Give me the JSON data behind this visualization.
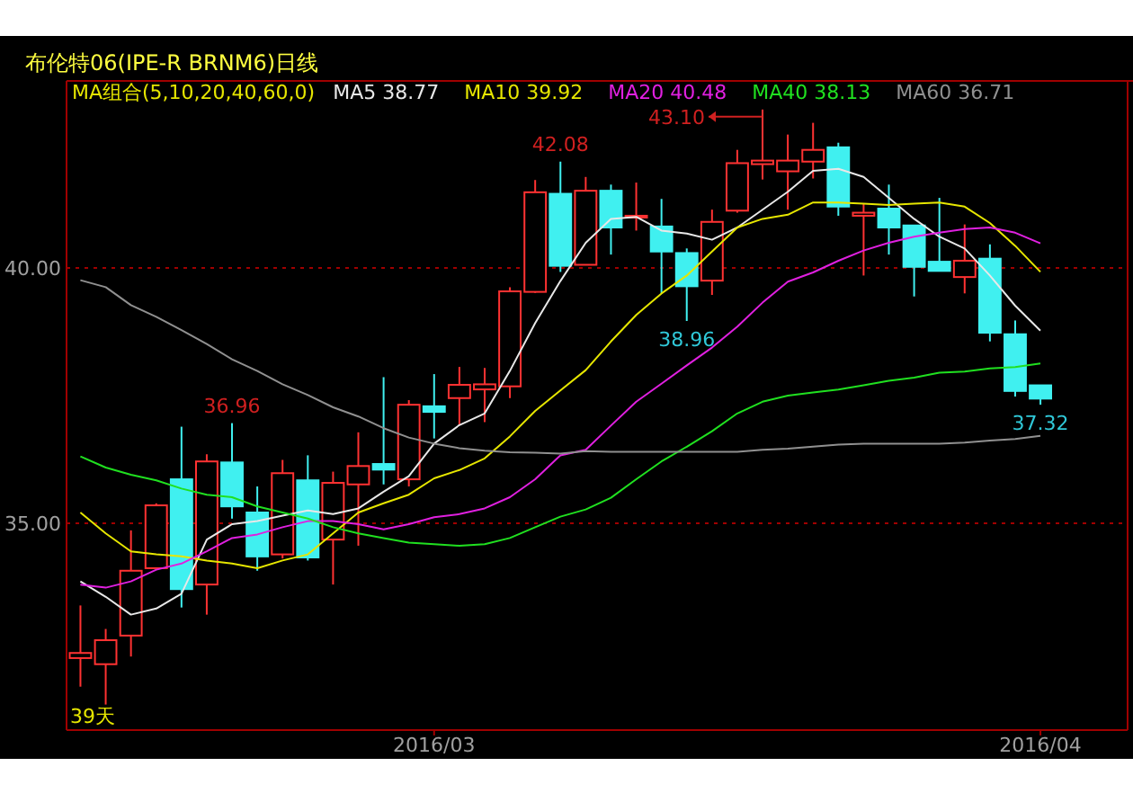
{
  "chart_data": {
    "type": "candlestick",
    "title": "布伦特06(IPE-R BRNM6)日线",
    "legend_title": "MA组合(5,10,20,40,60,0)",
    "legend": "top",
    "grid": "y",
    "categories": [
      null,
      null,
      null,
      null,
      null,
      null,
      null,
      null,
      null,
      null,
      null,
      null,
      null,
      null,
      "2016/03",
      null,
      null,
      null,
      null,
      null,
      null,
      null,
      null,
      null,
      null,
      null,
      null,
      null,
      null,
      null,
      null,
      null,
      null,
      null,
      null,
      null,
      null,
      null,
      "2016/04"
    ],
    "ylim": [
      30.95,
      43.66
    ],
    "yticks": [
      {
        "value": 35,
        "label": "35.00"
      },
      {
        "value": 40,
        "label": "40.00"
      }
    ],
    "ohlc": [
      [
        32.36,
        33.39,
        31.8,
        32.46
      ],
      [
        32.24,
        32.93,
        31.45,
        32.71
      ],
      [
        32.8,
        34.86,
        32.39,
        34.07
      ],
      [
        34.12,
        35.39,
        34.12,
        35.35
      ],
      [
        35.86,
        36.89,
        33.35,
        33.71
      ],
      [
        33.8,
        36.35,
        33.21,
        36.21
      ],
      [
        36.19,
        36.96,
        35.09,
        35.33
      ],
      [
        35.21,
        35.72,
        34.07,
        34.35
      ],
      [
        34.39,
        36.24,
        34.31,
        35.98
      ],
      [
        35.84,
        36.33,
        34.27,
        34.33
      ],
      [
        34.68,
        36.01,
        33.8,
        35.79
      ],
      [
        35.76,
        36.78,
        34.56,
        36.12
      ],
      [
        36.16,
        37.86,
        35.76,
        36.05
      ],
      [
        35.86,
        37.41,
        35.72,
        37.32
      ],
      [
        37.29,
        37.92,
        36.66,
        37.18
      ],
      [
        37.45,
        38.06,
        36.92,
        37.71
      ],
      [
        37.62,
        38.04,
        36.98,
        37.72
      ],
      [
        37.68,
        39.62,
        37.45,
        39.54
      ],
      [
        39.53,
        41.72,
        39.51,
        41.48
      ],
      [
        41.45,
        42.08,
        39.92,
        40.04
      ],
      [
        40.06,
        41.78,
        40.06,
        41.51
      ],
      [
        41.51,
        41.63,
        40.26,
        40.79
      ],
      [
        41.0,
        41.67,
        40.73,
        41.02
      ],
      [
        40.81,
        41.35,
        39.5,
        40.32
      ],
      [
        40.29,
        40.38,
        38.96,
        39.64
      ],
      [
        39.75,
        41.14,
        39.47,
        40.9
      ],
      [
        41.12,
        42.31,
        41.08,
        42.05
      ],
      [
        42.03,
        43.1,
        41.73,
        42.1
      ],
      [
        41.89,
        42.61,
        41.14,
        42.1
      ],
      [
        42.08,
        42.84,
        41.75,
        42.31
      ],
      [
        42.36,
        42.45,
        41.02,
        41.2
      ],
      [
        41.02,
        41.26,
        39.85,
        41.08
      ],
      [
        41.16,
        41.63,
        40.26,
        40.79
      ],
      [
        40.83,
        40.83,
        39.44,
        40.02
      ],
      [
        40.12,
        41.37,
        39.94,
        39.94
      ],
      [
        39.82,
        40.85,
        39.5,
        40.14
      ],
      [
        40.18,
        40.46,
        38.56,
        38.73
      ],
      [
        38.7,
        38.97,
        37.48,
        37.59
      ],
      [
        37.7,
        37.7,
        37.32,
        37.44
      ]
    ],
    "series": [
      {
        "name": "MA5 38.77",
        "type": "line",
        "color": "#e8e8e8",
        "values": [
          33.86,
          33.56,
          33.21,
          33.33,
          33.62,
          34.68,
          34.98,
          35.04,
          35.15,
          35.25,
          35.18,
          35.29,
          35.62,
          35.92,
          36.56,
          36.92,
          37.15,
          37.98,
          38.92,
          39.74,
          40.49,
          40.96,
          41.0,
          40.73,
          40.67,
          40.55,
          40.79,
          41.14,
          41.49,
          41.9,
          41.94,
          41.78,
          41.37,
          40.96,
          40.61,
          40.38,
          39.85,
          39.26,
          38.77
        ]
      },
      {
        "name": "MA10 39.92",
        "type": "line",
        "color": "#e6e600",
        "values": [
          35.21,
          34.8,
          34.45,
          34.39,
          34.35,
          34.27,
          34.21,
          34.12,
          34.27,
          34.39,
          34.8,
          35.21,
          35.39,
          35.56,
          35.88,
          36.04,
          36.27,
          36.7,
          37.2,
          37.6,
          38.0,
          38.56,
          39.08,
          39.5,
          39.85,
          40.32,
          40.79,
          40.96,
          41.04,
          41.28,
          41.28,
          41.26,
          41.23,
          41.26,
          41.28,
          41.2,
          40.88,
          40.43,
          39.92
        ]
      },
      {
        "name": "MA20 40.48",
        "type": "line",
        "color": "#e020e0",
        "values": [
          33.8,
          33.74,
          33.86,
          34.09,
          34.21,
          34.45,
          34.71,
          34.78,
          34.92,
          35.04,
          35.04,
          34.98,
          34.88,
          34.98,
          35.12,
          35.18,
          35.29,
          35.51,
          35.86,
          36.33,
          36.44,
          36.91,
          37.38,
          37.73,
          38.09,
          38.44,
          38.85,
          39.32,
          39.73,
          39.91,
          40.14,
          40.34,
          40.49,
          40.61,
          40.69,
          40.76,
          40.79,
          40.69,
          40.48
        ]
      },
      {
        "name": "MA40 38.13",
        "type": "line",
        "color": "#20e020",
        "values": [
          36.31,
          36.09,
          35.95,
          35.84,
          35.68,
          35.56,
          35.51,
          35.33,
          35.21,
          35.09,
          34.92,
          34.8,
          34.71,
          34.62,
          34.59,
          34.56,
          34.59,
          34.71,
          34.92,
          35.13,
          35.27,
          35.5,
          35.86,
          36.21,
          36.5,
          36.8,
          37.15,
          37.38,
          37.5,
          37.56,
          37.62,
          37.7,
          37.79,
          37.85,
          37.95,
          37.97,
          38.03,
          38.06,
          38.13
        ]
      },
      {
        "name": "MA60 36.71",
        "type": "line",
        "color": "#909090",
        "values": [
          39.76,
          39.62,
          39.27,
          39.04,
          38.78,
          38.51,
          38.21,
          37.98,
          37.72,
          37.51,
          37.27,
          37.09,
          36.86,
          36.68,
          36.56,
          36.47,
          36.42,
          36.39,
          36.38,
          36.36,
          36.41,
          36.4,
          36.4,
          36.4,
          36.4,
          36.4,
          36.4,
          36.44,
          36.46,
          36.5,
          36.54,
          36.56,
          36.56,
          36.56,
          36.56,
          36.58,
          36.62,
          36.65,
          36.71
        ]
      }
    ],
    "annotations": [
      {
        "text": "36.96",
        "y": 36.96
      },
      {
        "text": "42.08",
        "y": 42.08
      },
      "43.10",
      {
        "text": "38.96",
        "y": 38.96
      },
      {
        "text": "37.32",
        "y": 37.32
      },
      "39天"
    ]
  }
}
